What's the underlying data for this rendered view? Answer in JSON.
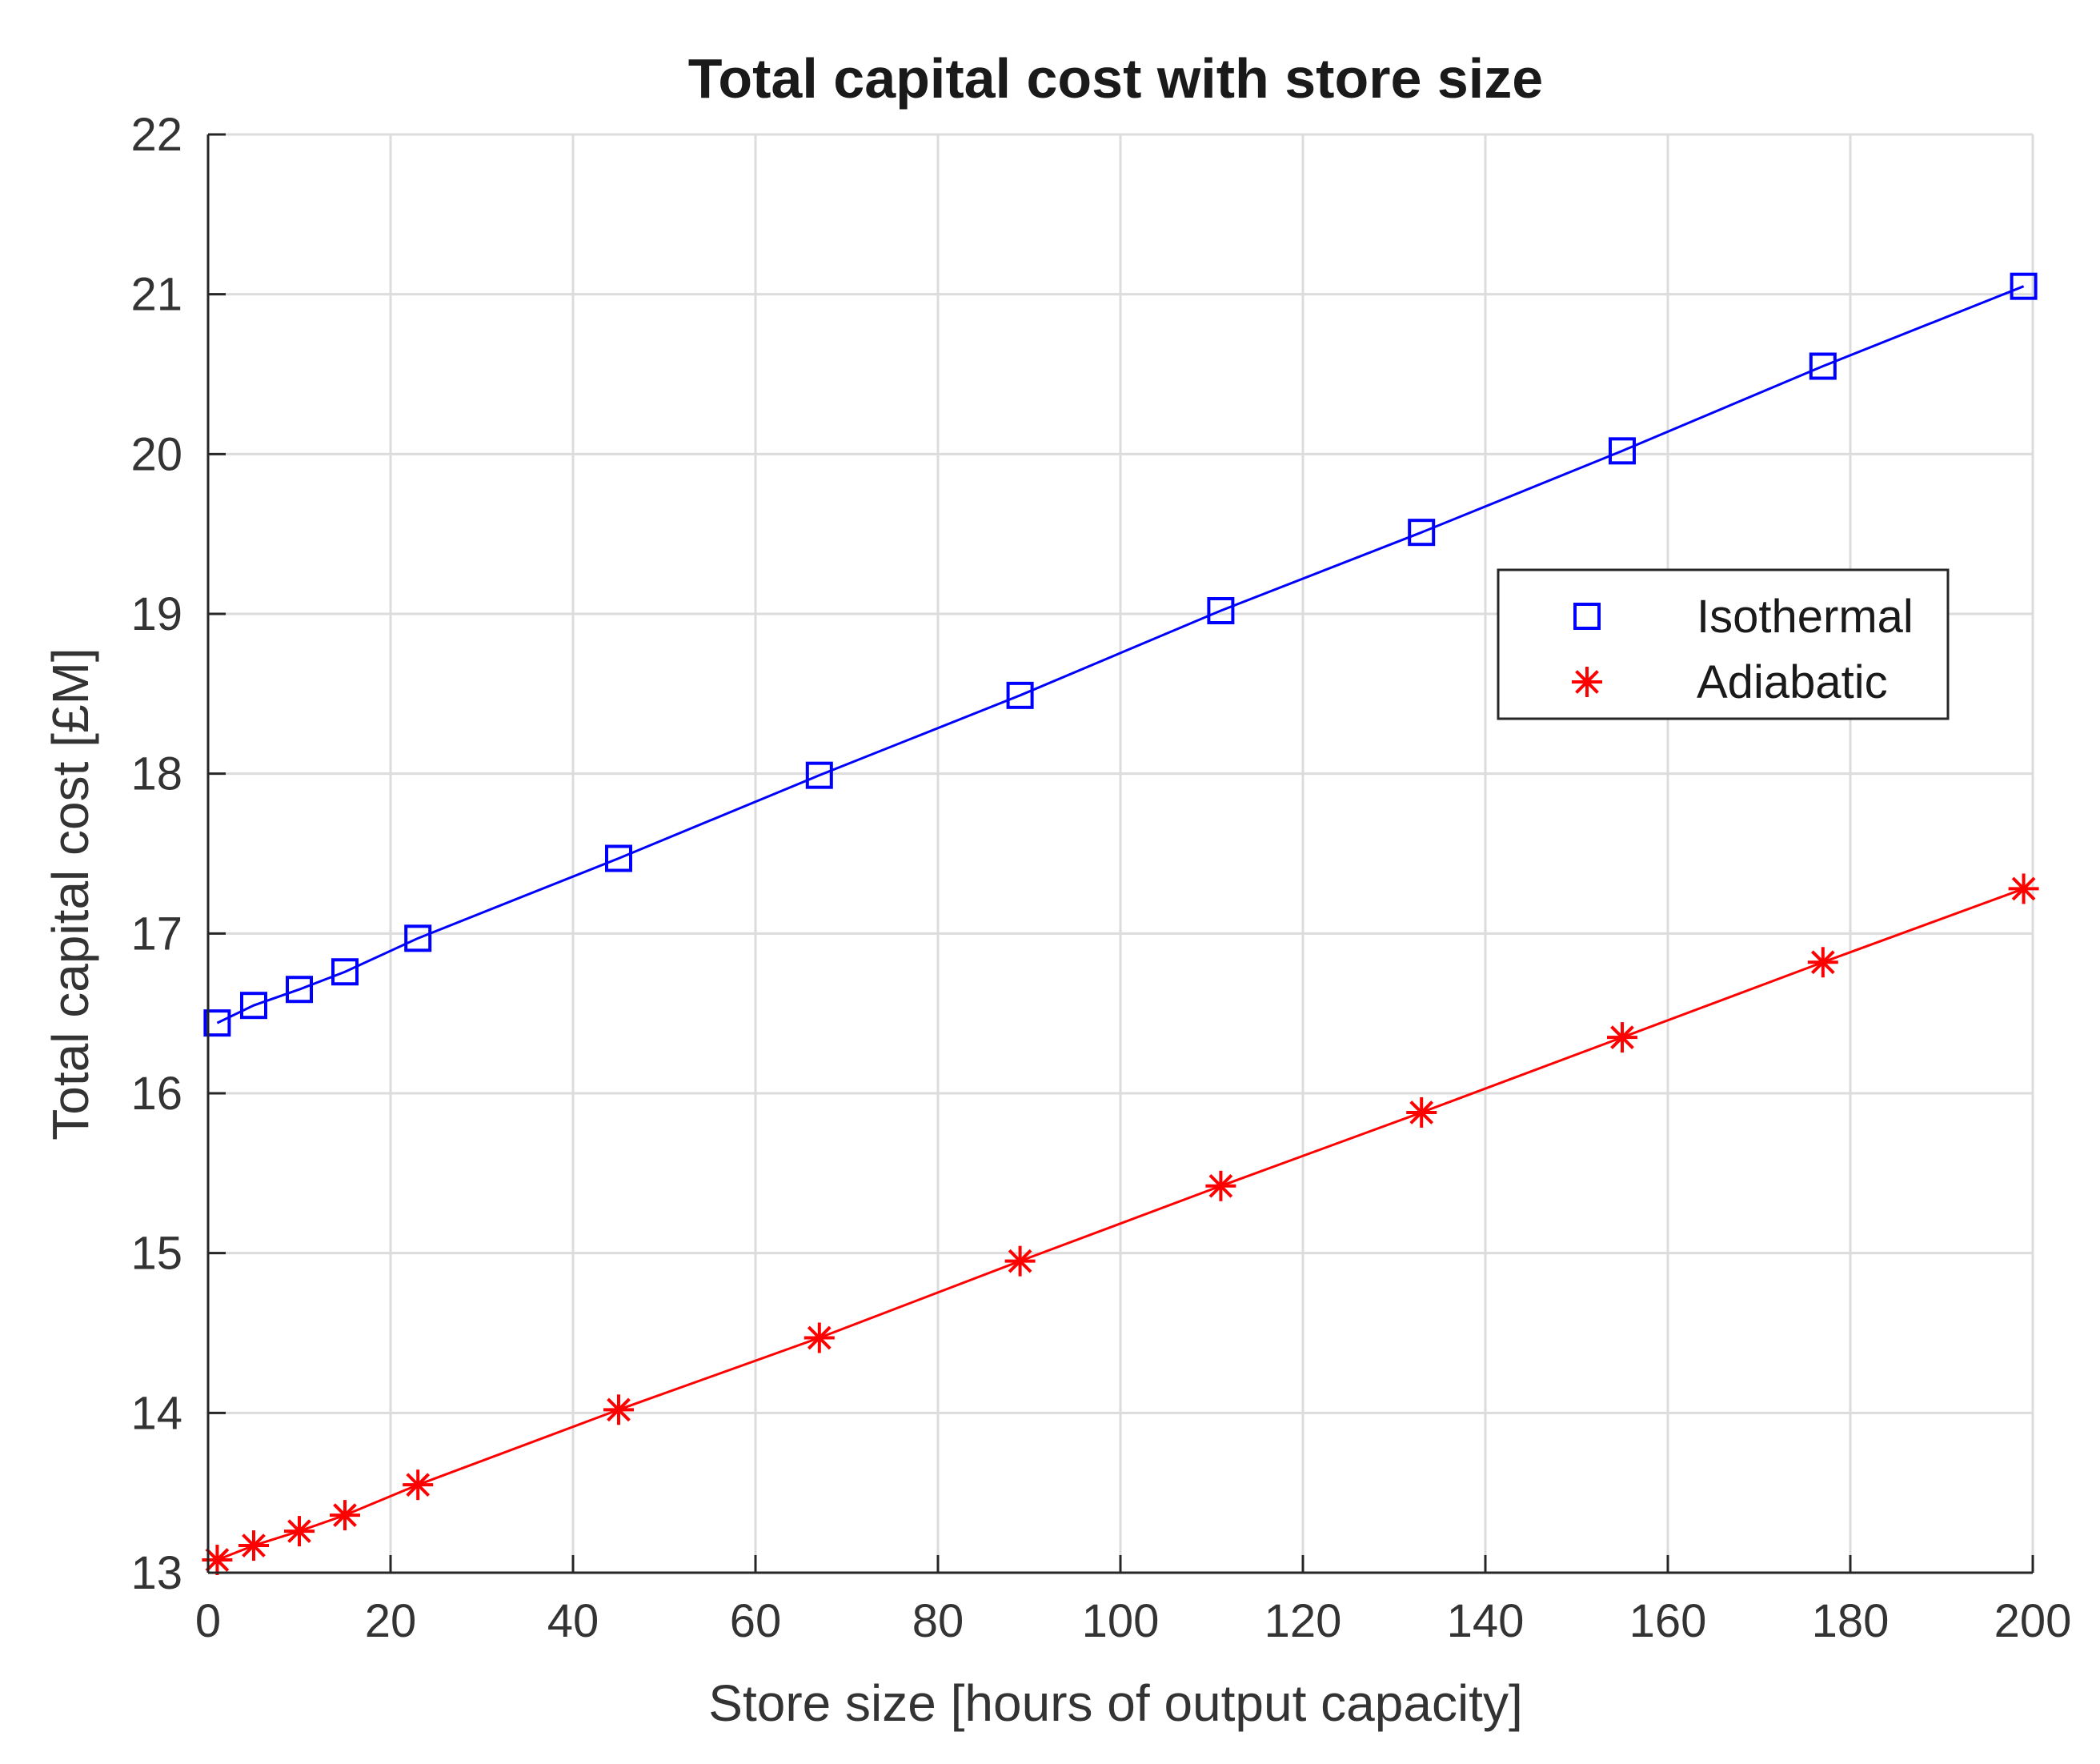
{
  "chart_data": {
    "type": "line",
    "title": "Total capital cost with store size",
    "xlabel": "Store size [hours of output capacity]",
    "ylabel": "Total capital cost [£M]",
    "xlim": [
      0,
      200
    ],
    "ylim": [
      13,
      22
    ],
    "xticks": [
      0,
      20,
      40,
      60,
      80,
      100,
      120,
      140,
      160,
      180,
      200
    ],
    "yticks": [
      13,
      14,
      15,
      16,
      17,
      18,
      19,
      20,
      21,
      22
    ],
    "grid": true,
    "legend_position": "right",
    "x": [
      1,
      5,
      10,
      15,
      23,
      45,
      67,
      89,
      111,
      133,
      155,
      177,
      199
    ],
    "series": [
      {
        "name": "Isothermal",
        "color": "#0000ff",
        "marker": "square",
        "values": [
          16.44,
          16.55,
          16.65,
          16.76,
          16.97,
          17.47,
          17.99,
          18.49,
          19.02,
          19.51,
          20.02,
          20.55,
          21.05
        ]
      },
      {
        "name": "Adiabatic",
        "color": "#ff0000",
        "marker": "asterisk",
        "values": [
          13.08,
          13.17,
          13.26,
          13.36,
          13.55,
          14.02,
          14.47,
          14.95,
          15.42,
          15.88,
          16.35,
          16.82,
          17.28
        ]
      }
    ]
  }
}
